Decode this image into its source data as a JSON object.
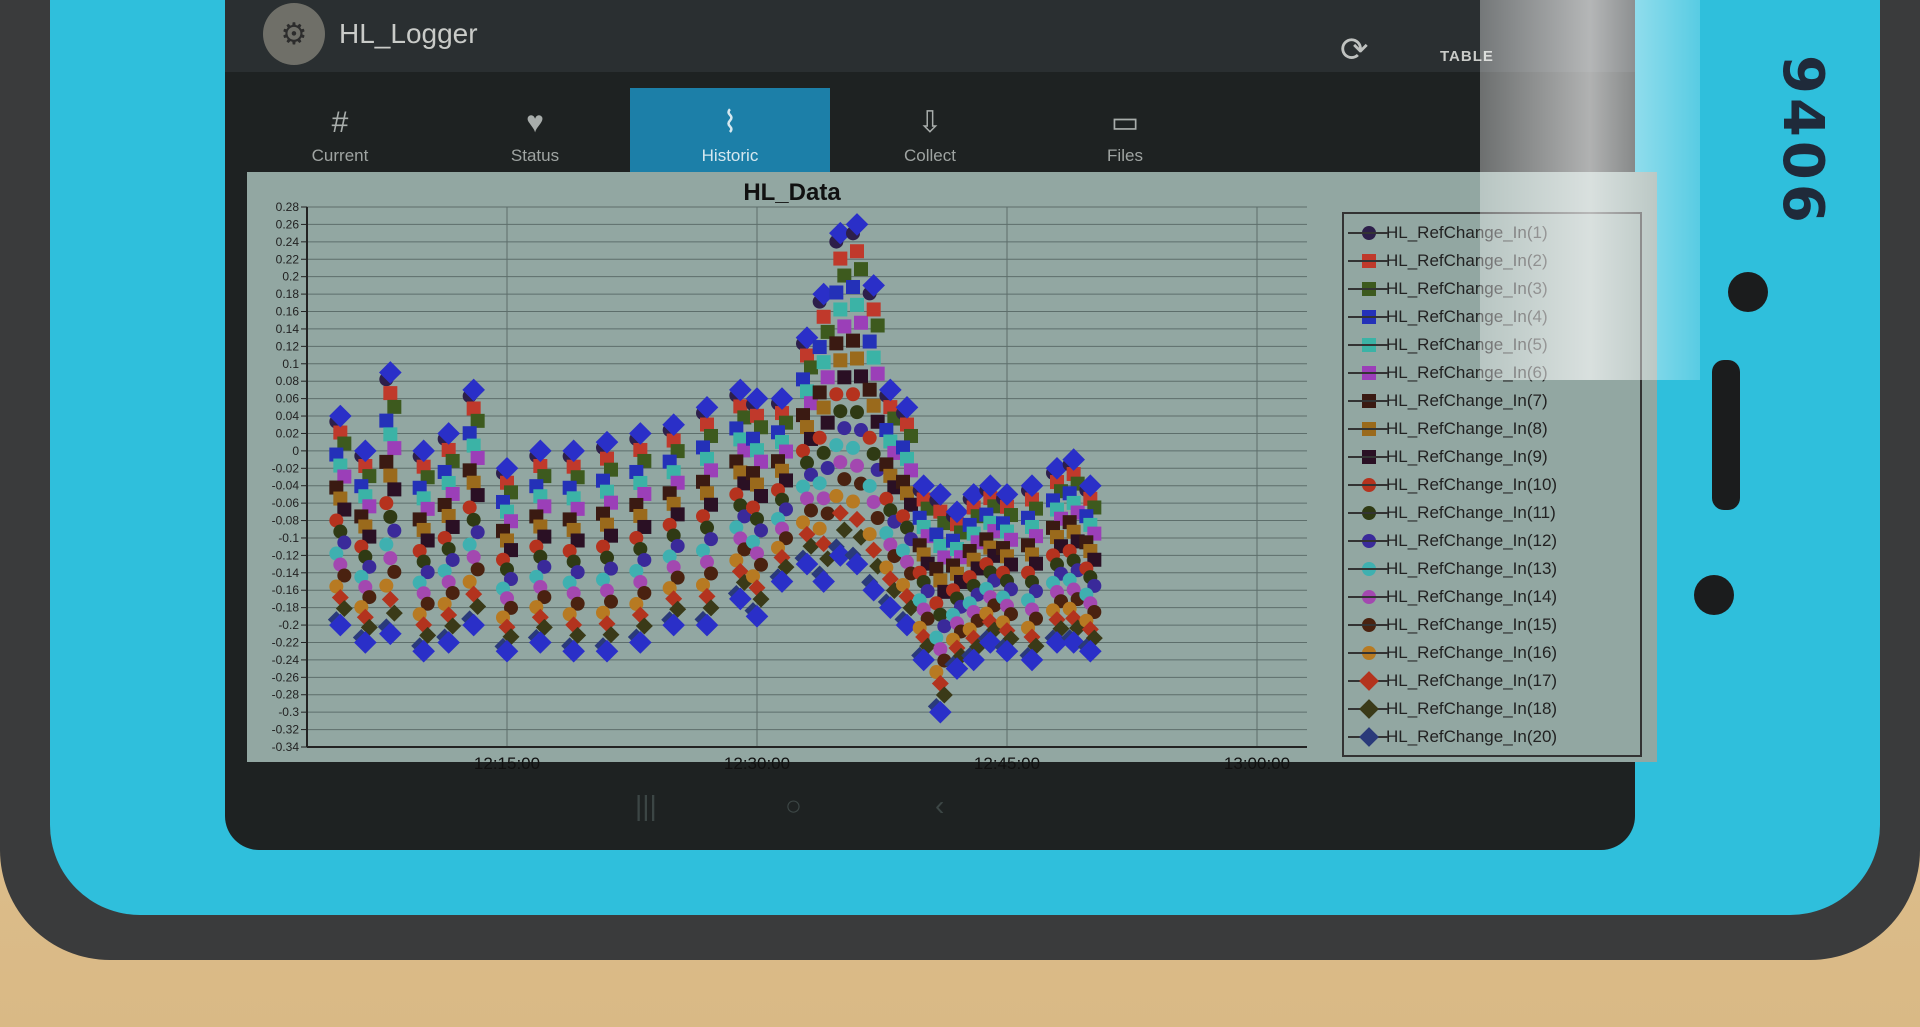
{
  "device": {
    "label": "9406"
  },
  "app": {
    "title": "HL_Logger",
    "table_button": "TABLE"
  },
  "tabs": [
    {
      "label": "Current",
      "icon": "hash-icon",
      "active": false
    },
    {
      "label": "Status",
      "icon": "heart-icon",
      "active": false
    },
    {
      "label": "Historic",
      "icon": "chart-icon",
      "active": true
    },
    {
      "label": "Collect",
      "icon": "download-icon",
      "active": false
    },
    {
      "label": "Files",
      "icon": "folder-icon",
      "active": false
    }
  ],
  "chart_data": {
    "type": "scatter",
    "title": "HL_Data",
    "xlabel": "",
    "ylabel": "",
    "x_ticks": [
      "12:15:00",
      "12:30:00",
      "12:45:00",
      "13:00:00"
    ],
    "y_ticks": [
      "0.28",
      "0.26",
      "0.24",
      "0.22",
      "0.2",
      "0.18",
      "0.16",
      "0.14",
      "0.12",
      "0.1",
      "0.08",
      "0.06",
      "0.04",
      "0.02",
      "0",
      "-0.02",
      "-0.04",
      "-0.06",
      "-0.08",
      "-0.1",
      "-0.12",
      "-0.14",
      "-0.16",
      "-0.18",
      "-0.2",
      "-0.22",
      "-0.24",
      "-0.26",
      "-0.28",
      "-0.3",
      "-0.32",
      "-0.34"
    ],
    "ylim": [
      -0.34,
      0.28
    ],
    "xlim": [
      "12:03:00",
      "13:03:00"
    ],
    "grid": true,
    "legend_position": "right",
    "series": [
      {
        "name": "HL_RefChange_In(1)",
        "color": "#2d1f4a",
        "marker": "circle"
      },
      {
        "name": "HL_RefChange_In(2)",
        "color": "#c0392b",
        "marker": "square"
      },
      {
        "name": "HL_RefChange_In(3)",
        "color": "#3d5a1e",
        "marker": "square"
      },
      {
        "name": "HL_RefChange_In(4)",
        "color": "#2431b8",
        "marker": "square"
      },
      {
        "name": "HL_RefChange_In(5)",
        "color": "#3bb3a6",
        "marker": "square"
      },
      {
        "name": "HL_RefChange_In(6)",
        "color": "#9b3fb8",
        "marker": "square"
      },
      {
        "name": "HL_RefChange_In(7)",
        "color": "#3a1a12",
        "marker": "square"
      },
      {
        "name": "HL_RefChange_In(8)",
        "color": "#9a6a1c",
        "marker": "square"
      },
      {
        "name": "HL_RefChange_In(9)",
        "color": "#2a1024",
        "marker": "square"
      },
      {
        "name": "HL_RefChange_In(10)",
        "color": "#b5321e",
        "marker": "circle"
      },
      {
        "name": "HL_RefChange_In(11)",
        "color": "#2f3a14",
        "marker": "circle"
      },
      {
        "name": "HL_RefChange_In(12)",
        "color": "#3a2a9a",
        "marker": "circle"
      },
      {
        "name": "HL_RefChange_In(13)",
        "color": "#3fb0b0",
        "marker": "circle"
      },
      {
        "name": "HL_RefChange_In(14)",
        "color": "#a348b0",
        "marker": "circle"
      },
      {
        "name": "HL_RefChange_In(15)",
        "color": "#4a2210",
        "marker": "circle"
      },
      {
        "name": "HL_RefChange_In(16)",
        "color": "#b77a22",
        "marker": "circle"
      },
      {
        "name": "HL_RefChange_In(17)",
        "color": "#b3331e",
        "marker": "diamond"
      },
      {
        "name": "HL_RefChange_In(18)",
        "color": "#3a3a18",
        "marker": "diamond"
      },
      {
        "name": "HL_RefChange_In(20)",
        "color": "#2a3a7a",
        "marker": "diamond"
      }
    ],
    "envelope": {
      "x": [
        "12:05:00",
        "12:06:30",
        "12:08:00",
        "12:10:00",
        "12:11:30",
        "12:13:00",
        "12:15:00",
        "12:17:00",
        "12:19:00",
        "12:21:00",
        "12:23:00",
        "12:25:00",
        "12:27:00",
        "12:29:00",
        "12:30:00",
        "12:31:30",
        "12:33:00",
        "12:34:00",
        "12:35:00",
        "12:36:00",
        "12:37:00",
        "12:38:00",
        "12:39:00",
        "12:40:00",
        "12:41:00",
        "12:42:00",
        "12:43:00",
        "12:44:00",
        "12:45:00",
        "12:46:30",
        "12:48:00",
        "12:49:00",
        "12:50:00"
      ],
      "upper": [
        0.04,
        0.0,
        0.09,
        0.0,
        0.02,
        0.07,
        -0.02,
        0.0,
        0.0,
        0.01,
        0.02,
        0.03,
        0.05,
        0.07,
        0.06,
        0.06,
        0.13,
        0.18,
        0.25,
        0.26,
        0.19,
        0.07,
        0.05,
        -0.04,
        -0.05,
        -0.07,
        -0.05,
        -0.04,
        -0.05,
        -0.04,
        -0.02,
        -0.01,
        -0.04
      ],
      "lower": [
        -0.2,
        -0.22,
        -0.21,
        -0.23,
        -0.22,
        -0.2,
        -0.23,
        -0.22,
        -0.23,
        -0.23,
        -0.22,
        -0.2,
        -0.2,
        -0.17,
        -0.19,
        -0.15,
        -0.13,
        -0.15,
        -0.12,
        -0.13,
        -0.16,
        -0.18,
        -0.2,
        -0.24,
        -0.3,
        -0.25,
        -0.24,
        -0.22,
        -0.23,
        -0.24,
        -0.22,
        -0.22,
        -0.23
      ]
    }
  }
}
